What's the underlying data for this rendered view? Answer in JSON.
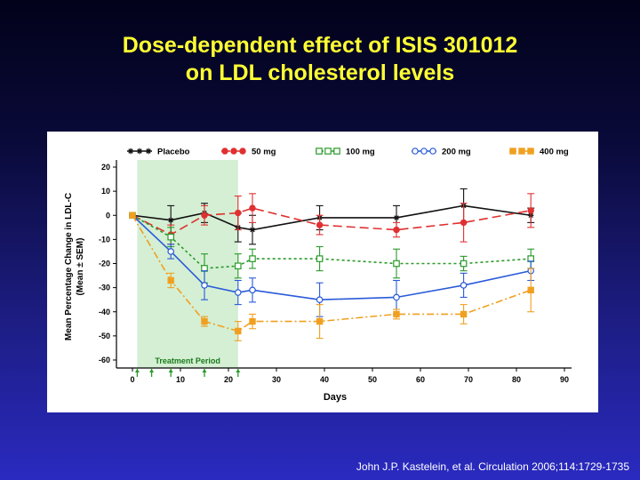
{
  "slide": {
    "title_line1": "Dose-dependent effect of ISIS 301012",
    "title_line2": "on LDL cholesterol levels",
    "citation": "John J.P. Kastelein, et al. Circulation 2006;114:1729-1735"
  },
  "chart_data": {
    "type": "line",
    "xlabel": "Days",
    "ylabel_line1": "Mean Percentage Change in LDL-C",
    "ylabel_line2": "(Mean ± SEM)",
    "xlim": [
      0,
      90
    ],
    "ylim": [
      -60,
      20
    ],
    "xticks": [
      0,
      10,
      20,
      30,
      40,
      50,
      60,
      70,
      80,
      90
    ],
    "yticks": [
      20,
      10,
      0,
      -10,
      -20,
      -30,
      -40,
      -50,
      -60
    ],
    "dosing_days": [
      1,
      4,
      8,
      15,
      22
    ],
    "shaded_region": {
      "label": "Treatment Period",
      "x_start": 1,
      "x_end": 22,
      "color": "#d4efd4"
    },
    "legend_position": "top",
    "series": [
      {
        "name": "Placebo",
        "color": "#111111",
        "dash": "",
        "marker": "star",
        "x": [
          0,
          8,
          15,
          22,
          25,
          39,
          55,
          69,
          83
        ],
        "y": [
          0,
          -2,
          1,
          -5,
          -6,
          -1,
          -1,
          4,
          0
        ],
        "err": [
          0,
          6,
          4,
          6,
          6,
          5,
          5,
          7,
          3
        ]
      },
      {
        "name": "50 mg",
        "color": "#e03030",
        "dash": "10,5",
        "marker": "filled-circle",
        "x": [
          0,
          8,
          15,
          22,
          25,
          39,
          55,
          69,
          83
        ],
        "y": [
          0,
          -8,
          0,
          1,
          3,
          -4,
          -6,
          -3,
          2
        ],
        "err": [
          0,
          4,
          4,
          7,
          6,
          4,
          3,
          8,
          7
        ]
      },
      {
        "name": "100 mg",
        "color": "#2a9a2a",
        "dash": "3,3",
        "marker": "open-square",
        "x": [
          0,
          8,
          15,
          22,
          25,
          39,
          55,
          69,
          83
        ],
        "y": [
          0,
          -9,
          -22,
          -21,
          -18,
          -18,
          -20,
          -20,
          -18
        ],
        "err": [
          0,
          4,
          6,
          5,
          4,
          5,
          6,
          3,
          4
        ]
      },
      {
        "name": "200 mg",
        "color": "#2a5ad8",
        "dash": "",
        "marker": "open-circle",
        "x": [
          0,
          8,
          15,
          22,
          25,
          39,
          55,
          69,
          83
        ],
        "y": [
          0,
          -15,
          -29,
          -32,
          -31,
          -35,
          -34,
          -29,
          -23
        ],
        "err": [
          0,
          3,
          6,
          5,
          5,
          7,
          7,
          5,
          4
        ]
      },
      {
        "name": "400 mg",
        "color": "#f0a020",
        "dash": "8,3,2,3",
        "marker": "filled-square",
        "x": [
          0,
          8,
          15,
          22,
          25,
          39,
          55,
          69,
          83
        ],
        "y": [
          0,
          -27,
          -44,
          -48,
          -44,
          -44,
          -41,
          -41,
          -31
        ],
        "err": [
          0,
          3,
          2,
          4,
          3,
          7,
          2,
          4,
          9
        ]
      }
    ]
  }
}
